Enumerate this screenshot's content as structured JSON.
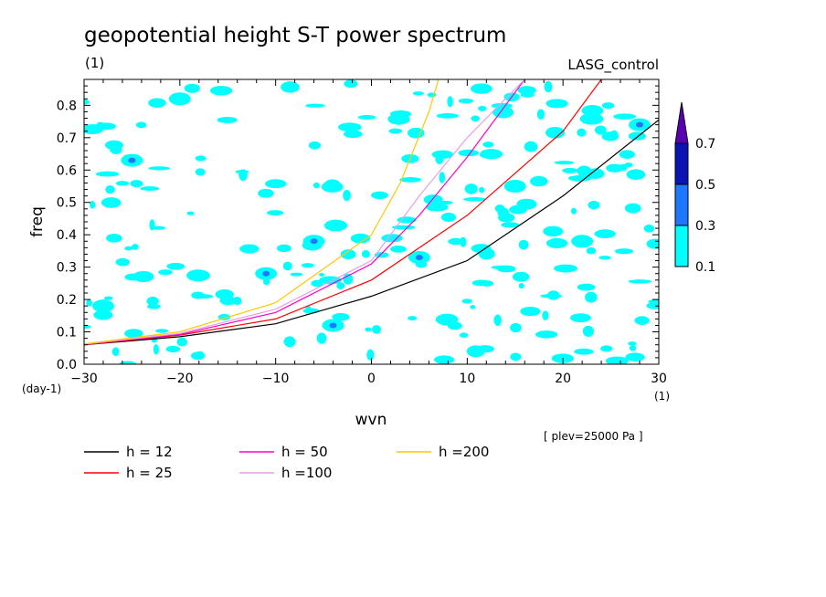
{
  "chart_data": {
    "type": "contour",
    "title": "geopotential height S-T power spectrum",
    "subtitle": "(1)",
    "run_label": "LASG_control",
    "xlabel": "wvn",
    "ylabel": "freq",
    "x_unit": "(1)",
    "y_unit": "(day-1)",
    "xlim": [
      -30,
      30
    ],
    "ylim": [
      0.0,
      0.88
    ],
    "xticks": [
      -30,
      -20,
      -10,
      0,
      10,
      20,
      30
    ],
    "xtick_labels": [
      "−30",
      "−20",
      "−10",
      "0",
      "10",
      "20",
      "30"
    ],
    "yticks": [
      0.0,
      0.1,
      0.2,
      0.3,
      0.4,
      0.5,
      0.6,
      0.7,
      0.8
    ],
    "ytick_labels": [
      "0.0",
      "0.1",
      "0.2",
      "0.3",
      "0.4",
      "0.5",
      "0.6",
      "0.7",
      "0.8"
    ],
    "level_note": "[ plev=25000 Pa ]",
    "colorbar": {
      "levels": [
        0.1,
        0.3,
        0.5,
        0.7
      ],
      "labels": [
        "0.1",
        "0.3",
        "0.5",
        "0.7"
      ],
      "colors": [
        "#00ffff",
        "#1e78ff",
        "#0a14b4",
        "#5a00b4"
      ]
    },
    "dispersion_curves": [
      {
        "label": "h = 12",
        "h": 12,
        "color": "#000000",
        "points": [
          [
            -30,
            0.06
          ],
          [
            -20,
            0.085
          ],
          [
            -10,
            0.125
          ],
          [
            0,
            0.21
          ],
          [
            10,
            0.32
          ],
          [
            20,
            0.52
          ],
          [
            30,
            0.755
          ]
        ]
      },
      {
        "label": "h = 25",
        "h": 25,
        "color": "#ff0000",
        "points": [
          [
            -30,
            0.06
          ],
          [
            -20,
            0.09
          ],
          [
            -10,
            0.14
          ],
          [
            0,
            0.26
          ],
          [
            10,
            0.46
          ],
          [
            20,
            0.72
          ],
          [
            24,
            0.88
          ]
        ]
      },
      {
        "label": "h = 50",
        "h": 50,
        "color": "#ff00c8",
        "points": [
          [
            -30,
            0.062
          ],
          [
            -20,
            0.092
          ],
          [
            -10,
            0.16
          ],
          [
            0,
            0.31
          ],
          [
            5,
            0.46
          ],
          [
            10,
            0.64
          ],
          [
            16,
            0.88
          ]
        ]
      },
      {
        "label": "h =100",
        "h": 100,
        "color": "#e6a0e6",
        "points": [
          [
            -30,
            0.062
          ],
          [
            -20,
            0.095
          ],
          [
            -10,
            0.17
          ],
          [
            0,
            0.32
          ],
          [
            5,
            0.52
          ],
          [
            10,
            0.7
          ],
          [
            16,
            0.88
          ]
        ]
      },
      {
        "label": "h =200",
        "h": 200,
        "color": "#ffc800",
        "points": [
          [
            -30,
            0.063
          ],
          [
            -20,
            0.1
          ],
          [
            -10,
            0.19
          ],
          [
            0,
            0.4
          ],
          [
            3,
            0.56
          ],
          [
            6,
            0.78
          ],
          [
            7,
            0.88
          ]
        ]
      }
    ],
    "shaded_patches": [
      {
        "x": -25,
        "y": 0.63,
        "level": 0.3
      },
      {
        "x": -4,
        "y": 0.12,
        "level": 0.3
      },
      {
        "x": 5,
        "y": 0.33,
        "level": 0.3
      },
      {
        "x": 28,
        "y": 0.74,
        "level": 0.3
      },
      {
        "x": -6,
        "y": 0.38,
        "level": 0.3
      },
      {
        "x": -11,
        "y": 0.28,
        "level": 0.3
      },
      {
        "x": -28,
        "y": 0.18,
        "level": 0.1
      },
      {
        "x": -20,
        "y": 0.82,
        "level": 0.1
      },
      {
        "x": 15,
        "y": 0.55,
        "level": 0.1
      },
      {
        "x": 22,
        "y": 0.38,
        "level": 0.1
      }
    ]
  },
  "legend": [
    {
      "label": "h = 12",
      "color": "#000000"
    },
    {
      "label": "h = 25",
      "color": "#ff0000"
    },
    {
      "label": "h = 50",
      "color": "#ff00c8"
    },
    {
      "label": "h =100",
      "color": "#e6a0e6"
    },
    {
      "label": "h =200",
      "color": "#ffc800"
    }
  ]
}
